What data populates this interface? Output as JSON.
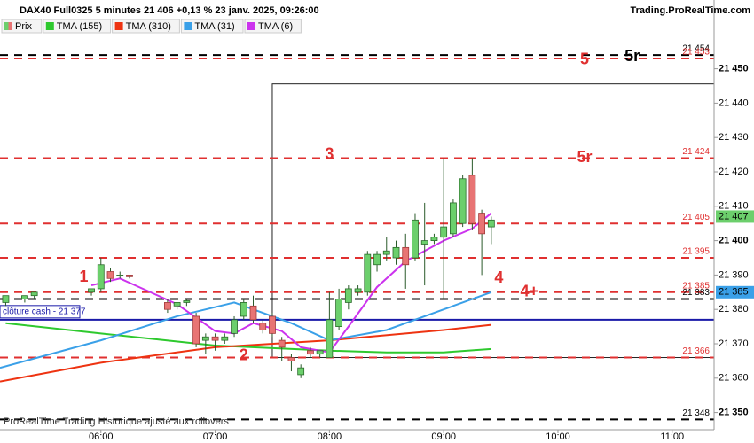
{
  "chart_data": {
    "type": "candlestick",
    "title": "DAX40 Full0325 5 minutes 21 406 +0,13 % 23 janv. 2025, 09:26:00",
    "source": "Trading.ProRealTime.com",
    "footnote": "ProRealTime Trading Historique ajusté aux rollovers",
    "xlim": [
      "05:07",
      "11:22"
    ],
    "xticks": [
      "06:00",
      "07:00",
      "08:00",
      "09:00",
      "10:00",
      "11:00"
    ],
    "ylim": [
      21345,
      21470
    ],
    "yticks": [
      {
        "value": 21350,
        "label": "21 350"
      },
      {
        "value": 21360,
        "label": "21 360"
      },
      {
        "value": 21370,
        "label": "21 370"
      },
      {
        "value": 21380,
        "label": "21 380"
      },
      {
        "value": 21390,
        "label": "21 390"
      },
      {
        "value": 21400,
        "label": "21 400"
      },
      {
        "value": 21410,
        "label": "21 410"
      },
      {
        "value": 21420,
        "label": "21 420"
      },
      {
        "value": 21430,
        "label": "21 430"
      },
      {
        "value": 21440,
        "label": "21 440"
      },
      {
        "value": 21450,
        "label": "21 450"
      }
    ],
    "candles": {
      "name": "Prix",
      "up_color": "#6ccf6c",
      "down_color": "#e87474",
      "x": [
        "05:10",
        "05:20",
        "05:25",
        "05:55",
        "06:00",
        "06:05",
        "06:10",
        "06:15",
        "06:35",
        "06:40",
        "06:45",
        "06:50",
        "06:55",
        "07:00",
        "07:05",
        "07:10",
        "07:15",
        "07:20",
        "07:25",
        "07:30",
        "07:35",
        "07:40",
        "07:45",
        "07:50",
        "07:55",
        "08:00",
        "08:05",
        "08:10",
        "08:15",
        "08:20",
        "08:25",
        "08:30",
        "08:35",
        "08:40",
        "08:45",
        "08:50",
        "08:55",
        "09:00",
        "09:05",
        "09:10",
        "09:15",
        "09:20",
        "09:25"
      ],
      "open": [
        21382,
        21383,
        21384,
        21385,
        21386,
        21391,
        21390,
        21390,
        21382,
        21381,
        21382,
        21378,
        21371,
        21372,
        21371,
        21373,
        21378,
        21381,
        21376,
        21378,
        21371,
        21366,
        21361,
        21368,
        21367,
        21366,
        21375,
        21382,
        21385,
        21385,
        21393,
        21396,
        21395,
        21398,
        21395,
        21399,
        21400,
        21401,
        21402,
        21405,
        21419,
        21408,
        21404
      ],
      "high": [
        21384,
        21384,
        21385,
        21386,
        21395,
        21392,
        21391,
        21390,
        21383,
        21382,
        21383,
        21379,
        21373,
        21373,
        21373,
        21378,
        21383,
        21384,
        21377,
        21379,
        21372,
        21367,
        21364,
        21369,
        21368,
        21385,
        21386,
        21387,
        21387,
        21397,
        21397,
        21401,
        21400,
        21402,
        21408,
        21411,
        21402,
        21424,
        21412,
        21419,
        21424,
        21409,
        21407
      ],
      "low": [
        21381,
        21382,
        21383,
        21384,
        21385,
        21388,
        21389,
        21389,
        21379,
        21380,
        21381,
        21369,
        21367,
        21368,
        21370,
        21372,
        21377,
        21376,
        21373,
        21372,
        21365,
        21362,
        21360,
        21366,
        21366,
        21366,
        21374,
        21380,
        21384,
        21384,
        21391,
        21394,
        21393,
        21386,
        21394,
        21387,
        21399,
        21383,
        21401,
        21404,
        21403,
        21390,
        21399
      ],
      "close": [
        21384,
        21384,
        21385,
        21386,
        21393,
        21389,
        21390,
        21389.5,
        21380,
        21382,
        21382.5,
        21370,
        21372,
        21371,
        21372,
        21377,
        21382,
        21377,
        21374,
        21373,
        21369,
        21365,
        21363,
        21367,
        21368,
        21377,
        21383,
        21386,
        21386,
        21396,
        21396,
        21397,
        21398,
        21393,
        21406,
        21400,
        21401,
        21404,
        21411,
        21418,
        21405,
        21402,
        21406
      ]
    },
    "series": [
      {
        "name": "TMA (155)",
        "color": "#2ec92e",
        "x": [
          "05:10",
          "06:00",
          "07:00",
          "08:00",
          "08:30",
          "09:00",
          "09:25"
        ],
        "values": [
          21376,
          21373,
          21369.5,
          21368,
          21367.5,
          21367.5,
          21368.5
        ]
      },
      {
        "name": "TMA (310)",
        "color": "#ee3311",
        "x": [
          "05:07",
          "06:00",
          "07:00",
          "08:00",
          "09:00",
          "09:25"
        ],
        "values": [
          21359,
          21364.5,
          21369,
          21371,
          21374,
          21375.5
        ]
      },
      {
        "name": "TMA (31)",
        "color": "#3aa0e8",
        "x": [
          "05:07",
          "06:00",
          "06:40",
          "07:10",
          "07:40",
          "08:00",
          "08:30",
          "09:00",
          "09:25"
        ],
        "values": [
          21363,
          21371,
          21378,
          21382,
          21376,
          21371,
          21374,
          21380,
          21385
        ]
      },
      {
        "name": "TMA (6)",
        "color": "#cc33ee",
        "x": [
          "05:55",
          "06:10",
          "06:20",
          "06:40",
          "07:00",
          "07:10",
          "07:20",
          "07:35",
          "07:45",
          "08:00",
          "08:10",
          "08:25",
          "08:40",
          "09:00",
          "09:15",
          "09:25"
        ],
        "values": [
          21387,
          21389,
          21386.5,
          21381.5,
          21373.7,
          21373,
          21376,
          21373.7,
          21369,
          21367.5,
          21375,
          21386.5,
          21394,
          21400,
          21403.5,
          21408
        ]
      }
    ],
    "levels": [
      {
        "value": 21454,
        "label": "21 454",
        "color": "#000000",
        "style": "dashed"
      },
      {
        "value": 21453,
        "label": "21 453",
        "color": "#e03030",
        "style": "dashed"
      },
      {
        "value": 21424,
        "label": "21 424",
        "color": "#e03030",
        "style": "dashed"
      },
      {
        "value": 21405,
        "label": "21 405",
        "color": "#e03030",
        "style": "dashed"
      },
      {
        "value": 21395,
        "label": "21 395",
        "color": "#e03030",
        "style": "dashed"
      },
      {
        "value": 21385,
        "label": "21 385",
        "color": "#e03030",
        "style": "dashed"
      },
      {
        "value": 21383,
        "label": "21 383",
        "color": "#000000",
        "style": "dashed"
      },
      {
        "value": 21377,
        "label": "clôture cash - 21 377",
        "color": "#1a1aa8",
        "style": "solid"
      },
      {
        "value": 21366,
        "label": "21 366",
        "color": "#e03030",
        "style": "dashed"
      },
      {
        "value": 21348,
        "label": "21 348",
        "color": "#000000",
        "style": "dashed"
      }
    ],
    "markers": [
      {
        "value": 21407,
        "label": "21 407",
        "color": "#6ccf6c"
      },
      {
        "value": 21385,
        "label": "21 385",
        "color": "#3aa0e8"
      }
    ],
    "zone": {
      "x0": "07:30",
      "y0": 21366,
      "y1": 21445.6
    },
    "annotations": [
      {
        "text": "1",
        "x": "05:51",
        "y": 21389.3,
        "color": "#e03030"
      },
      {
        "text": "2",
        "x": "07:15",
        "y": 21366.5,
        "color": "#e03030"
      },
      {
        "text": "3",
        "x": "08:00",
        "y": 21425,
        "color": "#e03030"
      },
      {
        "text": "4",
        "x": "09:29",
        "y": 21389,
        "color": "#e03030"
      },
      {
        "text": "4+",
        "x": "09:45",
        "y": 21385,
        "color": "#e03030"
      },
      {
        "text": "5",
        "x": "10:14",
        "y": 21452.5,
        "color": "#e03030"
      },
      {
        "text": "5r",
        "x": "10:14",
        "y": 21424,
        "color": "#e03030"
      },
      {
        "text": "5r",
        "x": "10:39",
        "y": 21453.5,
        "color": "#000000"
      }
    ]
  }
}
